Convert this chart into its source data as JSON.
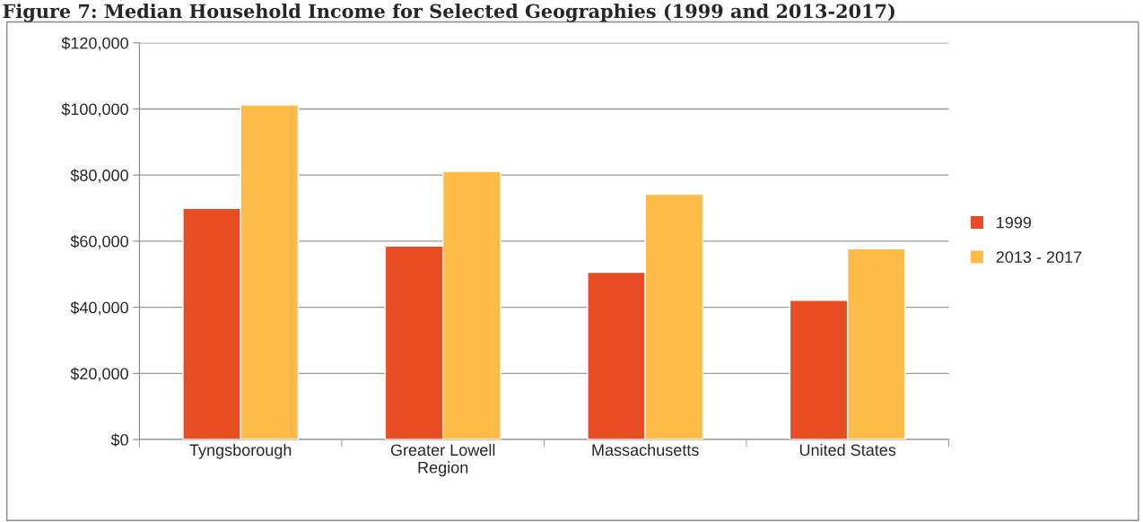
{
  "chart_data": {
    "type": "bar",
    "title": "Figure 7: Median Household Income for Selected Geographies (1999 and 2013-2017)",
    "categories": [
      "Tyngsborough",
      "Greater Lowell\nRegion",
      "Massachusetts",
      "United States"
    ],
    "series": [
      {
        "name": "1999",
        "color": "#e84c22",
        "values": [
          69900,
          58500,
          50600,
          42100
        ]
      },
      {
        "name": "2013 - 2017",
        "color": "#ffbb47",
        "values": [
          101200,
          81100,
          74200,
          57700
        ]
      }
    ],
    "ylim": [
      0,
      120000
    ],
    "yticks": [
      {
        "value": 0,
        "label": "$0"
      },
      {
        "value": 20000,
        "label": "$20,000"
      },
      {
        "value": 40000,
        "label": "$40,000"
      },
      {
        "value": 60000,
        "label": "$60,000"
      },
      {
        "value": 80000,
        "label": "$80,000"
      },
      {
        "value": 100000,
        "label": "$100,000"
      },
      {
        "value": 120000,
        "label": "$120,000"
      }
    ],
    "grid": "y",
    "legend": "right"
  }
}
